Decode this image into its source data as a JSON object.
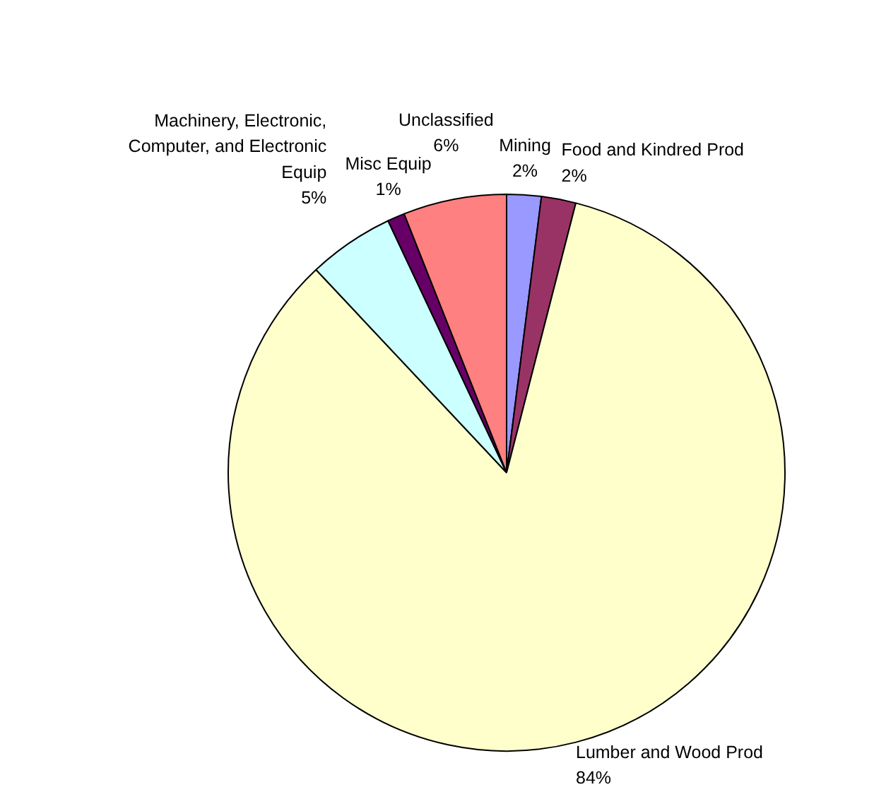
{
  "chart_data": {
    "type": "pie",
    "categories": [
      "Mining",
      "Food and Kindred Prod",
      "Lumber and Wood Prod",
      "Machinery, Electronic, Computer, and Electronic Equip",
      "Misc Equip",
      "Unclassified"
    ],
    "values": [
      2,
      2,
      84,
      5,
      1,
      6
    ],
    "colors": [
      "#9999ff",
      "#993366",
      "#ffffcc",
      "#ccffff",
      "#660066",
      "#ff8080"
    ],
    "value_labels": [
      "2%",
      "2%",
      "84%",
      "5%",
      "1%",
      "6%"
    ]
  }
}
